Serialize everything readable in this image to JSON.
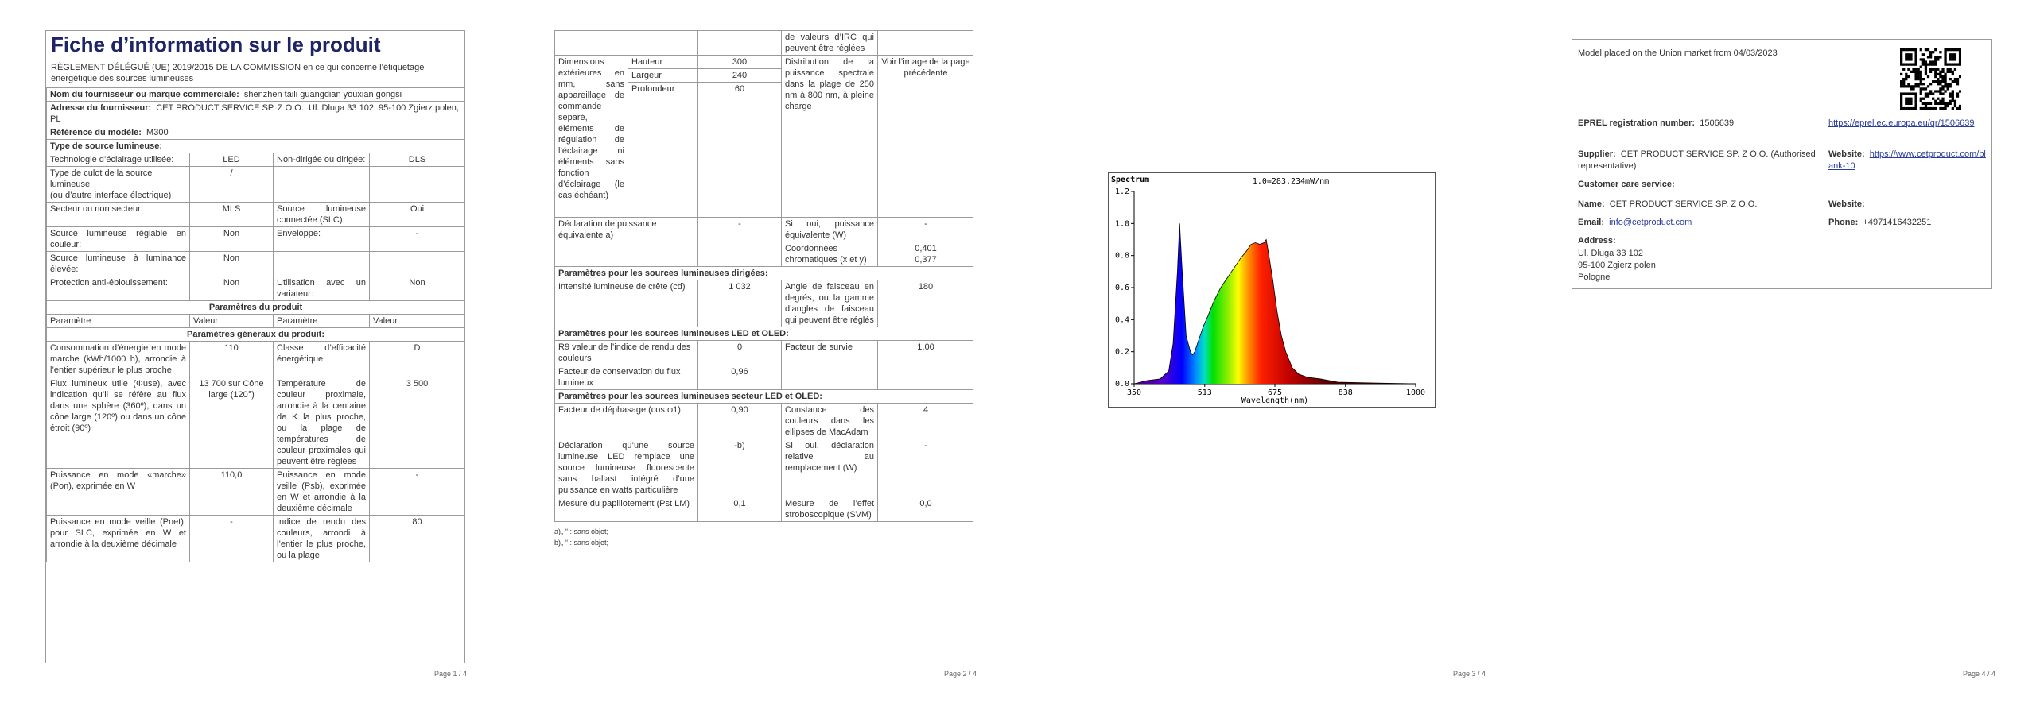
{
  "p1": {
    "title": "Fiche d’information sur le produit",
    "regulation": "RÈGLEMENT DÉLÉGUÉ (UE) 2019/2015 DE LA COMMISSION en ce qui concerne l’étiquetage énergétique des sources lumineuses",
    "supplier": {
      "label": "Nom du fournisseur ou marque commerciale:",
      "value": "shenzhen taili guangdian youxian gongsi"
    },
    "address": {
      "label": "Adresse du fournisseur:",
      "value": "CET PRODUCT SERVICE SP. Z O.O., Ul. Dluga 33 102, 95-100 Zgierz polen, PL"
    },
    "model": {
      "label": "Référence du modèle:",
      "value": "M300"
    },
    "source_type": "Type de source lumineuse:",
    "rows": [
      [
        "Technologie d’éclairage utilisée:",
        "LED",
        "Non-dirigée ou dirigée:",
        "DLS"
      ],
      [
        "Type de culot de la source lumineuse\n(ou d’autre interface électrique)",
        "/"
      ],
      [
        "Secteur ou non secteur:",
        "MLS",
        "Source lumineuse connectée (SLC):",
        "Oui"
      ],
      [
        "Source lumineuse réglable en couleur:",
        "Non",
        "Enveloppe:",
        "-"
      ],
      [
        "Source lumineuse à luminance élevée:",
        "Non"
      ],
      [
        "Protection anti-éblouissement:",
        "Non",
        "Utilisation avec un variateur:",
        "Non"
      ]
    ],
    "product_params": "Paramètres du produit",
    "header": [
      "Paramètre",
      "Valeur",
      "Paramètre",
      "Valeur"
    ],
    "general": "Paramètres généraux du produit:",
    "rows2": [
      [
        "Consommation d’énergie en mode marche (kWh/1000 h), arrondie à l’entier supérieur le plus proche",
        "110",
        "Classe d’efficacité énergétique",
        "D"
      ],
      [
        "Flux lumineux utile (Φuse), avec indication qu’il se réfère au flux dans une sphère (360º), dans un cône large (120º) ou dans un cône étroit (90º)",
        "13 700 sur Cône large (120°)",
        "Température de couleur proximale, arrondie à la centaine de K la plus proche, ou la plage de températures de couleur proximales qui peuvent être réglées",
        "3 500"
      ],
      [
        "Puissance en mode «marche» (Pon), exprimée en W",
        "110,0",
        "Puissance en mode veille (Psb), exprimée en W et arrondie à la deuxième décimale",
        "-"
      ],
      [
        "Puissance en mode veille (Pnet), pour SLC, exprimée en W et arrondie à la deuxième décimale",
        "-",
        "Indice de rendu des couleurs, arrondi à l’entier le plus proche, ou la plage",
        "80"
      ]
    ],
    "footer": "Page 1 / 4"
  },
  "p2": {
    "cont": "de valeurs d’IRC qui peuvent être réglées",
    "dims": {
      "label": "Dimensions extérieures en mm, sans appareillage de commande séparé, éléments de régulation de l’éclairage ni éléments sans fonction d’éclairage (le cas échéant)",
      "items": [
        [
          "Hauteur",
          "300"
        ],
        [
          "Largeur",
          "240"
        ],
        [
          "Profondeur",
          "60"
        ]
      ],
      "param": "Distribution de la puissance spectrale dans la plage de 250 nm à 800 nm, à pleine charge",
      "value": "Voir l’image de la page précédente"
    },
    "equiv": [
      "Déclaration de puissance équivalente a)",
      "-",
      "Si oui, puissance équivalente (W)",
      "-"
    ],
    "chroma": {
      "label": "Coordonnées chromatiques (x et y)",
      "values": [
        "0,401",
        "0,377"
      ]
    },
    "directed": "Paramètres pour les sources lumineuses dirigées:",
    "rows_dir": [
      [
        "Intensité lumineuse de crête (cd)",
        "1 032",
        "Angle de faisceau en degrés, ou la gamme d’angles de faisceau qui peuvent être réglés",
        "180"
      ]
    ],
    "led": "Paramètres pour les sources lumineuses LED et OLED:",
    "rows_led": [
      [
        "R9 valeur de l’indice de rendu des couleurs",
        "0",
        "Facteur de survie",
        "1,00"
      ],
      [
        "Facteur de conservation du flux lumineux",
        "0,96"
      ]
    ],
    "mains": "Paramètres pour les sources lumineuses secteur LED et OLED:",
    "rows_mains": [
      [
        "Facteur de déphasage (cos φ1)",
        "0,90",
        "Constance des couleurs dans les ellipses de MacAdam",
        "4"
      ],
      [
        "Déclaration qu’une source lumineuse LED remplace une source lumineuse fluorescente sans ballast intégré d’une puissance en watts particulière",
        "-b)",
        "Si oui, déclaration relative au remplacement (W)",
        "-"
      ],
      [
        "Mesure du papillotement (Pst LM)",
        "0,1",
        "Mesure de l’effet stroboscopique (SVM)",
        "0,0"
      ]
    ],
    "notes": [
      "a)„-“ : sans objet;",
      "b)„-“ : sans objet;"
    ],
    "footer": "Page 2 / 4"
  },
  "chart_data": {
    "type": "area",
    "title": "Spectrum",
    "subtitle": "1.0=283.234mW/nm",
    "x_label": "Wavelength(nm)",
    "xlim": [
      350,
      1000
    ],
    "xticks": [
      350,
      513,
      675,
      838,
      1000
    ],
    "ylim": [
      0,
      1.2
    ],
    "yticks": [
      {
        "value": 0,
        "label": "0.0"
      },
      0.2,
      0.4,
      0.6,
      0.8,
      {
        "value": 1,
        "label": "1.0"
      },
      1.2
    ],
    "series": [
      {
        "color": "#000000",
        "x": [
          350,
          380,
          410,
          430,
          440,
          450,
          455,
          460,
          470,
          480,
          485,
          490,
          500,
          510,
          520,
          535,
          550,
          565,
          580,
          595,
          610,
          620,
          630,
          640,
          650,
          655,
          660,
          670,
          680,
          690,
          700,
          715,
          730,
          750,
          780,
          820,
          900,
          1000
        ],
        "values": [
          0,
          0.02,
          0.03,
          0.08,
          0.25,
          0.7,
          1.0,
          0.75,
          0.3,
          0.2,
          0.18,
          0.2,
          0.28,
          0.36,
          0.42,
          0.52,
          0.6,
          0.66,
          0.72,
          0.78,
          0.83,
          0.87,
          0.88,
          0.87,
          0.88,
          0.9,
          0.82,
          0.65,
          0.45,
          0.3,
          0.2,
          0.1,
          0.06,
          0.04,
          0.03,
          0.01,
          0.005,
          0
        ]
      }
    ]
  },
  "p3": {
    "footer": "Page 3 / 4"
  },
  "p4": {
    "placed": "Model placed on the Union market from 04/03/2023",
    "eprel": {
      "label": "EPREL registration number:",
      "value": "1506639",
      "link": "https://eprel.ec.europa.eu/qr/1506639"
    },
    "supplier": {
      "label": "Supplier:",
      "value": "CET PRODUCT SERVICE SP. Z O.O. (Authorised representative)"
    },
    "website": {
      "label": "Website:",
      "value": "https://www.cetproduct.com/blank-10"
    },
    "care": "Customer care service:",
    "name": {
      "label": "Name:",
      "value": "CET PRODUCT SERVICE SP. Z O.O."
    },
    "care_website": {
      "label": "Website:"
    },
    "email": {
      "label": "Email:",
      "value": "info@cetproduct.com"
    },
    "phone": {
      "label": "Phone:",
      "value": "+4971416432251"
    },
    "address": {
      "label": "Address:",
      "lines": [
        "Ul. Dluga 33 102",
        "95-100 Zgierz polen",
        "Pologne"
      ]
    },
    "footer": "Page 4 / 4"
  }
}
